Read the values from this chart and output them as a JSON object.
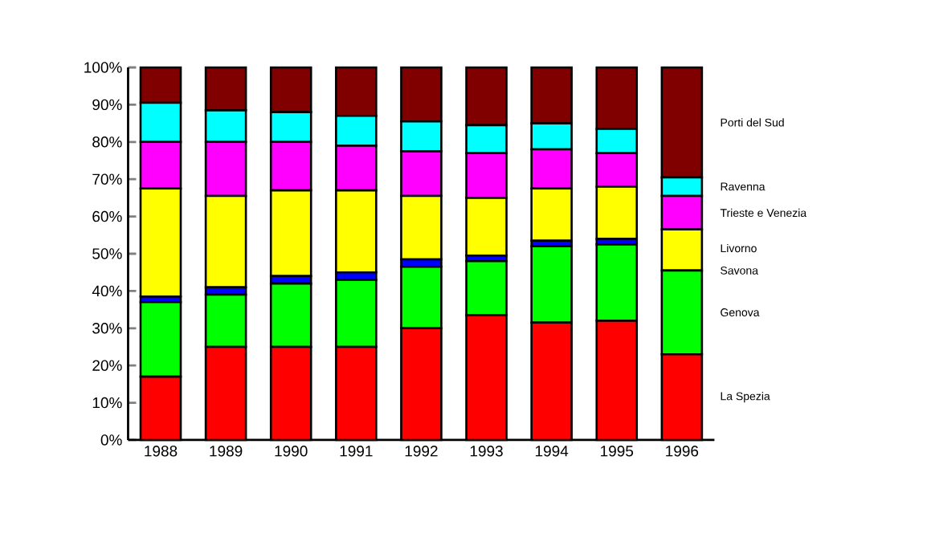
{
  "chart_data": {
    "type": "bar",
    "stacked": true,
    "legend": false,
    "categories": [
      "1988",
      "1989",
      "1990",
      "1991",
      "1992",
      "1993",
      "1994",
      "1995",
      "1996"
    ],
    "ylim": [
      0,
      100
    ],
    "yticks": [
      {
        "value": 0,
        "label": "0%"
      },
      {
        "value": 10,
        "label": "10%"
      },
      {
        "value": 20,
        "label": "20%"
      },
      {
        "value": 30,
        "label": "30%"
      },
      {
        "value": 40,
        "label": "40%"
      },
      {
        "value": 50,
        "label": "50%"
      },
      {
        "value": 60,
        "label": "60%"
      },
      {
        "value": 70,
        "label": "70%"
      },
      {
        "value": 80,
        "label": "80%"
      },
      {
        "value": 90,
        "label": "90%"
      },
      {
        "value": 100,
        "label": "100%"
      }
    ],
    "series": [
      {
        "name": "La Spezia",
        "color": "#ff0000",
        "values": [
          17,
          25,
          25,
          25,
          30,
          33.5,
          31.5,
          32,
          23
        ]
      },
      {
        "name": "Genova",
        "color": "#00ff00",
        "values": [
          20,
          14,
          17,
          18,
          16.5,
          14.5,
          20.5,
          20.5,
          22.5
        ]
      },
      {
        "name": "Savona",
        "color": "#0000ff",
        "values": [
          1.5,
          2,
          2,
          2,
          2,
          1.5,
          1.5,
          1.5,
          null
        ]
      },
      {
        "name": "Livorno",
        "color": "#ffff00",
        "values": [
          29,
          24.5,
          23,
          22,
          17,
          15.5,
          14,
          14,
          11
        ]
      },
      {
        "name": "Trieste e Venezia",
        "color": "#ff00ff",
        "values": [
          12.5,
          14.5,
          13,
          12,
          12,
          12,
          10.5,
          9,
          9
        ]
      },
      {
        "name": "Ravenna",
        "color": "#00ffff",
        "values": [
          10.5,
          8.5,
          8,
          8,
          8,
          7.5,
          7,
          6.5,
          5
        ]
      },
      {
        "name": "Porti del Sud",
        "color": "#800000",
        "values": [
          9.5,
          11.5,
          12,
          13,
          14.5,
          15.5,
          15,
          16.5,
          29.5
        ]
      }
    ]
  }
}
